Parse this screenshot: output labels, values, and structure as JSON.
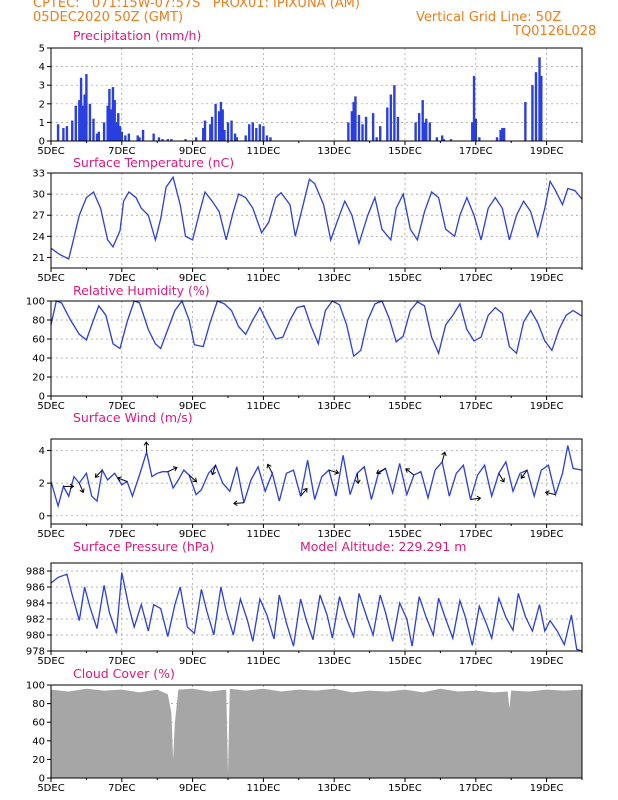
{
  "header": {
    "line1_left": "CPTEC:   071:15W-07:57S   PROX01: IPIXUNA (AM)",
    "line2_left": "05DEC2020 50Z (GMT)",
    "line2_right": "Vertical Grid Line: 50Z",
    "line3_right": "TQ0126L028"
  },
  "colors": {
    "header": "#f07d1c",
    "title": "#e0197d",
    "series": "#2a3fe0",
    "cloud": "#a6a6a6"
  },
  "x_tick_labels": [
    "5DEC",
    "7DEC",
    "9DEC",
    "11DEC",
    "13DEC",
    "15DEC",
    "17DEC",
    "19DEC"
  ],
  "chart_data": [
    {
      "type": "bar",
      "title": "Precipitation (mm/h)",
      "ylim": [
        0,
        5
      ],
      "yticks": [
        0,
        1,
        2,
        3,
        4,
        5
      ],
      "x": [
        0.2,
        0.35,
        0.45,
        0.6,
        0.7,
        0.8,
        0.85,
        0.9,
        0.95,
        1.0,
        1.1,
        1.2,
        1.3,
        1.35,
        1.5,
        1.6,
        1.65,
        1.7,
        1.75,
        1.8,
        1.85,
        1.9,
        1.95,
        2.0,
        2.1,
        2.2,
        2.45,
        2.5,
        2.6,
        2.9,
        3.05,
        3.15,
        3.3,
        3.4,
        3.8,
        4.1,
        4.3,
        4.35,
        4.5,
        4.55,
        4.65,
        4.75,
        4.8,
        4.85,
        4.9,
        5.0,
        5.1,
        5.2,
        5.25,
        5.5,
        5.6,
        5.7,
        5.8,
        5.9,
        6.0,
        6.1,
        6.2,
        8.4,
        8.5,
        8.55,
        8.6,
        8.7,
        8.8,
        8.9,
        9.1,
        9.2,
        9.3,
        9.5,
        9.6,
        9.7,
        9.8,
        10.3,
        10.4,
        10.5,
        10.55,
        10.6,
        10.7,
        10.9,
        11.05,
        11.1,
        11.3,
        11.9,
        11.95,
        12.0,
        12.1,
        12.6,
        12.7,
        12.75,
        12.8,
        13.4,
        13.6,
        13.7,
        13.8,
        13.85
      ],
      "values": [
        0.9,
        0.7,
        0.8,
        1.1,
        1.9,
        2.2,
        3.4,
        1.9,
        2.5,
        3.6,
        2.0,
        1.2,
        0.4,
        0.5,
        1.0,
        1.9,
        2.8,
        1.7,
        2.9,
        2.2,
        1.0,
        1.5,
        0.8,
        0.5,
        0.3,
        0.4,
        0.3,
        0.2,
        0.6,
        0.4,
        0.2,
        0.1,
        0.1,
        0.1,
        0.1,
        0.2,
        0.7,
        1.1,
        0.9,
        1.3,
        2.0,
        1.6,
        2.1,
        1.7,
        0.6,
        1.0,
        1.1,
        0.4,
        0.2,
        0.3,
        0.9,
        1.0,
        0.7,
        0.9,
        0.8,
        0.3,
        0.2,
        1.0,
        1.6,
        2.1,
        2.4,
        1.4,
        0.9,
        1.3,
        1.5,
        0.2,
        0.8,
        1.8,
        2.5,
        3.0,
        1.3,
        1.0,
        1.5,
        2.2,
        1.0,
        1.2,
        1.0,
        0.2,
        0.3,
        0.1,
        0.1,
        1.0,
        3.5,
        1.2,
        0.2,
        0.2,
        0.6,
        0.7,
        0.7,
        2.1,
        3.0,
        3.7,
        4.5,
        3.5
      ]
    },
    {
      "type": "line",
      "title": "Surface Temperature (nC)",
      "ylim": [
        19.5,
        33
      ],
      "yticks": [
        21,
        24,
        27,
        30,
        33
      ],
      "x": [
        0,
        0.25,
        0.5,
        0.6,
        0.8,
        1.0,
        1.2,
        1.4,
        1.6,
        1.75,
        1.95,
        2.05,
        2.2,
        2.4,
        2.55,
        2.75,
        2.95,
        3.1,
        3.25,
        3.45,
        3.65,
        3.8,
        4.0,
        4.2,
        4.35,
        4.55,
        4.75,
        4.95,
        5.15,
        5.3,
        5.5,
        5.7,
        5.95,
        6.15,
        6.35,
        6.5,
        6.75,
        6.9,
        7.1,
        7.3,
        7.45,
        7.7,
        7.9,
        8.15,
        8.3,
        8.5,
        8.7,
        8.95,
        9.15,
        9.35,
        9.6,
        9.75,
        9.95,
        10.15,
        10.35,
        10.55,
        10.75,
        10.95,
        11.15,
        11.4,
        11.55,
        11.75,
        11.95,
        12.15,
        12.35,
        12.55,
        12.75,
        12.95,
        13.15,
        13.35,
        13.55,
        13.75,
        13.95,
        14.1,
        14.25,
        14.45,
        14.6,
        14.8,
        15.0
      ],
      "values": [
        22.3,
        21.4,
        20.8,
        22.8,
        27.0,
        29.5,
        30.3,
        28.0,
        23.5,
        22.5,
        24.8,
        29.0,
        30.3,
        29.5,
        28.0,
        27.0,
        23.5,
        26.5,
        31.0,
        32.4,
        28.5,
        24.0,
        23.5,
        27.5,
        30.3,
        29.0,
        27.5,
        23.5,
        27.5,
        30.0,
        29.5,
        28.0,
        24.5,
        26.0,
        29.5,
        30.2,
        28.5,
        24.0,
        28.0,
        32.1,
        31.5,
        28.5,
        23.5,
        27.0,
        29.0,
        27.0,
        23.0,
        27.0,
        29.5,
        25.0,
        23.5,
        28.0,
        30.0,
        25.0,
        23.5,
        27.5,
        30.3,
        29.5,
        25.0,
        24.0,
        27.0,
        29.5,
        27.0,
        23.5,
        28.0,
        29.5,
        28.0,
        23.5,
        27.0,
        29.0,
        27.5,
        24.0,
        28.0,
        31.8,
        30.5,
        28.5,
        30.8,
        30.5,
        29.3
      ]
    },
    {
      "type": "line",
      "title": "Relative Humidity (%)",
      "ylim": [
        0,
        100
      ],
      "yticks": [
        0,
        20,
        40,
        60,
        80,
        100
      ],
      "x": [
        0,
        0.15,
        0.3,
        0.55,
        0.8,
        1.0,
        1.2,
        1.35,
        1.55,
        1.75,
        1.95,
        2.15,
        2.35,
        2.5,
        2.75,
        2.95,
        3.1,
        3.3,
        3.5,
        3.7,
        3.9,
        4.05,
        4.3,
        4.5,
        4.7,
        4.9,
        5.1,
        5.3,
        5.5,
        5.7,
        5.9,
        6.15,
        6.35,
        6.55,
        6.75,
        6.95,
        7.15,
        7.35,
        7.55,
        7.75,
        7.95,
        8.15,
        8.35,
        8.55,
        8.75,
        8.95,
        9.15,
        9.35,
        9.55,
        9.75,
        9.95,
        10.15,
        10.35,
        10.55,
        10.75,
        10.95,
        11.15,
        11.35,
        11.55,
        11.75,
        11.95,
        12.15,
        12.35,
        12.55,
        12.75,
        12.95,
        13.15,
        13.35,
        13.55,
        13.75,
        13.95,
        14.15,
        14.35,
        14.55,
        14.75,
        15.0
      ],
      "values": [
        75,
        100,
        98,
        80,
        65,
        59,
        80,
        95,
        85,
        55,
        50,
        78,
        100,
        98,
        70,
        55,
        50,
        70,
        90,
        100,
        80,
        54,
        52,
        78,
        100,
        97,
        90,
        73,
        65,
        80,
        93,
        74,
        60,
        62,
        80,
        93,
        95,
        73,
        55,
        90,
        100,
        96,
        75,
        42,
        48,
        80,
        97,
        100,
        82,
        57,
        63,
        90,
        99,
        95,
        62,
        45,
        75,
        85,
        97,
        70,
        58,
        62,
        85,
        93,
        87,
        52,
        45,
        78,
        90,
        77,
        58,
        48,
        70,
        85,
        90,
        84
      ]
    },
    {
      "type": "line",
      "title": "Surface Wind (m/s)",
      "ylim": [
        -0.5,
        4.7
      ],
      "yticks": [
        0,
        2,
        4
      ],
      "x": [
        0,
        0.2,
        0.35,
        0.5,
        0.65,
        0.8,
        1.0,
        1.15,
        1.3,
        1.45,
        1.6,
        1.8,
        2.0,
        2.15,
        2.3,
        2.5,
        2.7,
        2.85,
        3.0,
        3.15,
        3.3,
        3.45,
        3.6,
        3.75,
        3.9,
        4.1,
        4.25,
        4.45,
        4.65,
        4.85,
        5.05,
        5.25,
        5.45,
        5.65,
        5.85,
        6.05,
        6.25,
        6.45,
        6.65,
        6.85,
        7.05,
        7.25,
        7.45,
        7.65,
        7.85,
        8.05,
        8.25,
        8.45,
        8.65,
        8.85,
        9.05,
        9.25,
        9.45,
        9.65,
        9.85,
        10.05,
        10.25,
        10.45,
        10.65,
        10.85,
        11.05,
        11.25,
        11.45,
        11.65,
        11.85,
        12.05,
        12.25,
        12.45,
        12.65,
        12.85,
        13.05,
        13.25,
        13.45,
        13.65,
        13.85,
        14.05,
        14.25,
        14.45,
        14.6,
        14.75,
        15.0
      ],
      "values": [
        2.1,
        0.6,
        1.8,
        1.2,
        2.4,
        2.0,
        2.6,
        1.2,
        0.9,
        2.8,
        2.2,
        2.6,
        1.9,
        2.1,
        1.2,
        2.5,
        3.9,
        2.4,
        2.6,
        2.7,
        2.7,
        1.7,
        2.2,
        2.8,
        2.5,
        1.3,
        1.6,
        2.6,
        3.1,
        2.0,
        1.5,
        3.0,
        0.8,
        2.2,
        3.0,
        1.5,
        2.6,
        0.9,
        2.6,
        2.8,
        1.2,
        3.4,
        1.0,
        2.4,
        2.8,
        1.2,
        3.7,
        1.3,
        2.6,
        3.0,
        1.0,
        2.6,
        2.9,
        1.4,
        3.2,
        1.3,
        2.5,
        2.7,
        1.1,
        2.8,
        3.3,
        1.2,
        2.6,
        3.1,
        1.0,
        2.5,
        3.1,
        1.2,
        2.6,
        3.3,
        1.5,
        2.6,
        2.8,
        1.2,
        2.8,
        3.1,
        1.3,
        2.6,
        4.3,
        2.9,
        2.8
      ]
    },
    {
      "type": "line",
      "title": "Surface Pressure (hPa)",
      "annotation": "Model Altitude: 229.291 m",
      "ylim": [
        978,
        989
      ],
      "yticks": [
        978,
        980,
        982,
        984,
        986,
        988
      ],
      "x": [
        0,
        0.2,
        0.45,
        0.6,
        0.8,
        0.95,
        1.1,
        1.3,
        1.5,
        1.65,
        1.85,
        2.0,
        2.2,
        2.35,
        2.55,
        2.75,
        2.9,
        3.1,
        3.3,
        3.5,
        3.65,
        3.85,
        4.05,
        4.25,
        4.4,
        4.6,
        4.8,
        4.95,
        5.15,
        5.35,
        5.55,
        5.7,
        5.9,
        6.1,
        6.3,
        6.45,
        6.65,
        6.85,
        7.05,
        7.2,
        7.4,
        7.6,
        7.8,
        7.95,
        8.15,
        8.35,
        8.55,
        8.7,
        8.9,
        9.1,
        9.3,
        9.45,
        9.65,
        9.85,
        10.05,
        10.2,
        10.4,
        10.6,
        10.8,
        10.95,
        11.15,
        11.35,
        11.55,
        11.7,
        11.9,
        12.1,
        12.3,
        12.45,
        12.65,
        12.85,
        13.05,
        13.2,
        13.4,
        13.6,
        13.8,
        13.95,
        14.1,
        14.3,
        14.5,
        14.7,
        14.85,
        15.0
      ],
      "values": [
        986.5,
        987.2,
        987.6,
        985.0,
        981.8,
        986.0,
        983.5,
        980.8,
        986.2,
        982.8,
        980.2,
        987.8,
        983.5,
        981.0,
        983.8,
        980.5,
        983.8,
        983.3,
        979.8,
        983.8,
        986.0,
        981.0,
        980.2,
        985.7,
        983.0,
        980.0,
        986.0,
        983.0,
        980.0,
        984.5,
        981.8,
        979.2,
        984.5,
        982.5,
        979.5,
        985.0,
        981.5,
        978.6,
        984.5,
        982.0,
        979.4,
        985.0,
        982.5,
        979.6,
        984.8,
        982.0,
        979.8,
        985.2,
        982.5,
        980.0,
        985.0,
        982.8,
        979.2,
        984.0,
        982.0,
        978.6,
        984.8,
        982.2,
        980.0,
        984.6,
        982.0,
        979.6,
        984.3,
        982.3,
        978.7,
        983.6,
        981.4,
        979.6,
        984.6,
        982.2,
        980.6,
        985.2,
        982.3,
        980.5,
        983.8,
        980.5,
        981.8,
        980.5,
        978.8,
        982.5,
        978.2,
        976.5
      ]
    },
    {
      "type": "area",
      "title": "Cloud Cover (%)",
      "ylim": [
        0,
        100
      ],
      "yticks": [
        0,
        20,
        40,
        60,
        80,
        100
      ],
      "x": [
        0,
        0.5,
        1.0,
        1.5,
        2.0,
        2.5,
        3.0,
        3.3,
        3.4,
        3.45,
        3.5,
        3.6,
        4.0,
        4.5,
        4.95,
        5.0,
        5.05,
        5.5,
        6.0,
        6.5,
        7.0,
        7.5,
        8.0,
        8.5,
        9.0,
        9.5,
        10.0,
        10.5,
        11.0,
        11.5,
        12.0,
        12.5,
        12.9,
        12.95,
        13.0,
        13.5,
        14.0,
        14.5,
        15.0
      ],
      "values": [
        95,
        93,
        96,
        94,
        95,
        92,
        95,
        90,
        70,
        20,
        60,
        95,
        96,
        93,
        95,
        5,
        96,
        94,
        96,
        93,
        95,
        94,
        96,
        92,
        94,
        93,
        95,
        92,
        96,
        93,
        94,
        92,
        93,
        75,
        94,
        93,
        95,
        94,
        95
      ]
    }
  ]
}
